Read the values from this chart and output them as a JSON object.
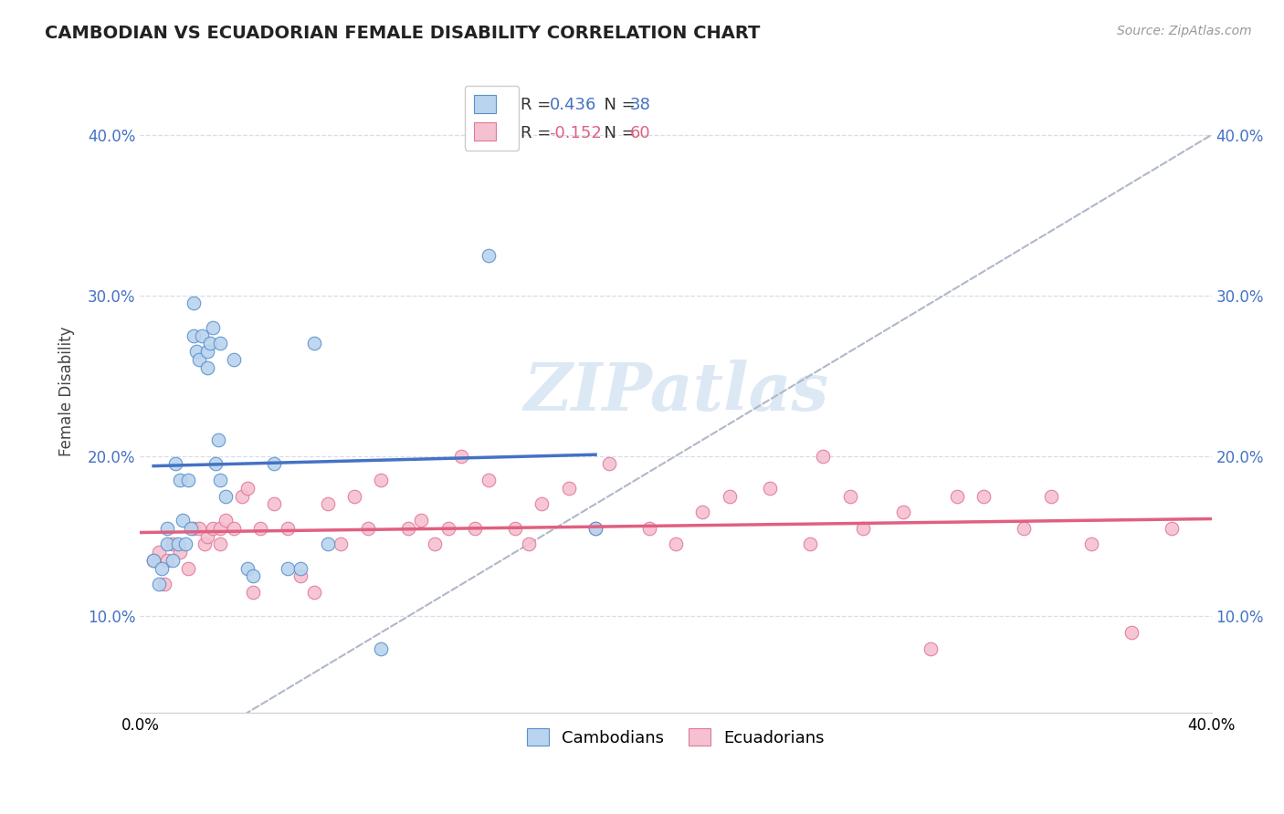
{
  "title": "CAMBODIAN VS ECUADORIAN FEMALE DISABILITY CORRELATION CHART",
  "source": "Source: ZipAtlas.com",
  "ylabel": "Female Disability",
  "xlim": [
    0.0,
    0.4
  ],
  "ylim": [
    0.04,
    0.44
  ],
  "yticks": [
    0.1,
    0.2,
    0.3,
    0.4
  ],
  "ytick_labels": [
    "10.0%",
    "20.0%",
    "30.0%",
    "40.0%"
  ],
  "cambodian_color": "#b8d4ee",
  "ecuadorian_color": "#f5c0d0",
  "cambodian_edge_color": "#5b8fcc",
  "ecuadorian_edge_color": "#e07898",
  "cambodian_line_color": "#4472c4",
  "ecuadorian_line_color": "#e06080",
  "diagonal_color": "#b0b8c8",
  "watermark_color": "#dde8f5",
  "cambodian_x": [
    0.005,
    0.007,
    0.008,
    0.01,
    0.01,
    0.012,
    0.013,
    0.014,
    0.015,
    0.016,
    0.017,
    0.018,
    0.019,
    0.02,
    0.02,
    0.021,
    0.022,
    0.023,
    0.025,
    0.025,
    0.026,
    0.027,
    0.028,
    0.029,
    0.03,
    0.03,
    0.032,
    0.035,
    0.04,
    0.042,
    0.05,
    0.055,
    0.06,
    0.065,
    0.07,
    0.09,
    0.13,
    0.17
  ],
  "cambodian_y": [
    0.135,
    0.12,
    0.13,
    0.145,
    0.155,
    0.135,
    0.195,
    0.145,
    0.185,
    0.16,
    0.145,
    0.185,
    0.155,
    0.275,
    0.295,
    0.265,
    0.26,
    0.275,
    0.255,
    0.265,
    0.27,
    0.28,
    0.195,
    0.21,
    0.27,
    0.185,
    0.175,
    0.26,
    0.13,
    0.125,
    0.195,
    0.13,
    0.13,
    0.27,
    0.145,
    0.08,
    0.325,
    0.155
  ],
  "ecuadorian_x": [
    0.005,
    0.007,
    0.009,
    0.01,
    0.012,
    0.015,
    0.018,
    0.02,
    0.022,
    0.024,
    0.025,
    0.027,
    0.03,
    0.03,
    0.032,
    0.035,
    0.038,
    0.04,
    0.042,
    0.045,
    0.05,
    0.055,
    0.06,
    0.065,
    0.07,
    0.075,
    0.08,
    0.085,
    0.09,
    0.1,
    0.105,
    0.11,
    0.115,
    0.12,
    0.125,
    0.13,
    0.14,
    0.145,
    0.15,
    0.16,
    0.17,
    0.175,
    0.19,
    0.2,
    0.21,
    0.22,
    0.235,
    0.25,
    0.255,
    0.265,
    0.27,
    0.285,
    0.295,
    0.305,
    0.315,
    0.33,
    0.34,
    0.355,
    0.37,
    0.385
  ],
  "ecuadorian_y": [
    0.135,
    0.14,
    0.12,
    0.135,
    0.145,
    0.14,
    0.13,
    0.155,
    0.155,
    0.145,
    0.15,
    0.155,
    0.155,
    0.145,
    0.16,
    0.155,
    0.175,
    0.18,
    0.115,
    0.155,
    0.17,
    0.155,
    0.125,
    0.115,
    0.17,
    0.145,
    0.175,
    0.155,
    0.185,
    0.155,
    0.16,
    0.145,
    0.155,
    0.2,
    0.155,
    0.185,
    0.155,
    0.145,
    0.17,
    0.18,
    0.155,
    0.195,
    0.155,
    0.145,
    0.165,
    0.175,
    0.18,
    0.145,
    0.2,
    0.175,
    0.155,
    0.165,
    0.08,
    0.175,
    0.175,
    0.155,
    0.175,
    0.145,
    0.09,
    0.155
  ]
}
